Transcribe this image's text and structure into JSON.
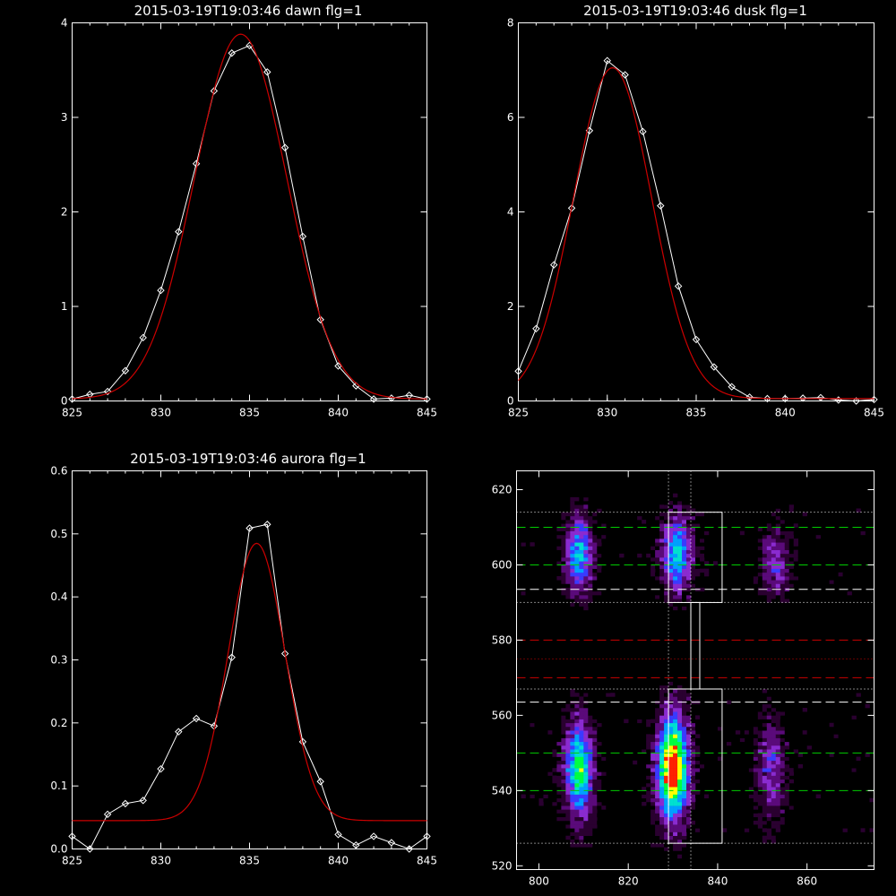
{
  "chart_data": [
    {
      "type": "line",
      "title": "2015-03-19T19:03:46 dawn flg=1",
      "xlim": [
        825,
        845
      ],
      "ylim": [
        0,
        4
      ],
      "xticks": [
        "825",
        "830",
        "835",
        "840",
        "845"
      ],
      "yticks": [
        "0",
        "1",
        "2",
        "3",
        "4"
      ],
      "series": [
        {
          "color": "#ffffff",
          "marker": "diamond",
          "x": [
            825,
            826,
            827,
            828,
            829,
            830,
            831,
            832,
            833,
            834,
            835,
            836,
            837,
            838,
            839,
            840,
            841,
            842,
            843,
            844,
            845
          ],
          "y": [
            0.02,
            0.07,
            0.1,
            0.32,
            0.67,
            1.17,
            1.79,
            2.51,
            3.28,
            3.68,
            3.76,
            3.48,
            2.68,
            1.74,
            0.86,
            0.37,
            0.16,
            0.02,
            0.03,
            0.06,
            0.02
          ]
        },
        {
          "color": "#cc0000",
          "fit": "gaussian",
          "center": 834.5,
          "sigma": 2.6,
          "amplitude": 3.86,
          "baseline": 0.02
        }
      ]
    },
    {
      "type": "line",
      "title": "2015-03-19T19:03:46 dusk flg=1",
      "xlim": [
        825,
        845
      ],
      "ylim": [
        0,
        8
      ],
      "xticks": [
        "825",
        "830",
        "835",
        "840",
        "845"
      ],
      "yticks": [
        "0",
        "2",
        "4",
        "6",
        "8"
      ],
      "series": [
        {
          "color": "#ffffff",
          "marker": "diamond",
          "x": [
            825,
            826,
            827,
            828,
            829,
            830,
            831,
            832,
            833,
            834,
            835,
            836,
            837,
            838,
            839,
            840,
            841,
            842,
            843,
            844,
            845
          ],
          "y": [
            0.63,
            1.53,
            2.88,
            4.08,
            5.72,
            7.2,
            6.9,
            5.7,
            4.13,
            2.43,
            1.3,
            0.72,
            0.3,
            0.08,
            0.05,
            0.05,
            0.06,
            0.07,
            0.02,
            -0.05,
            0.03
          ]
        },
        {
          "color": "#cc0000",
          "fit": "gaussian",
          "center": 830.3,
          "sigma": 2.2,
          "amplitude": 7.0,
          "baseline": 0.05
        }
      ]
    },
    {
      "type": "line",
      "title": "2015-03-19T19:03:46 aurora flg=1",
      "xlim": [
        825,
        845
      ],
      "ylim": [
        0,
        0.6
      ],
      "xticks": [
        "825",
        "830",
        "835",
        "840",
        "845"
      ],
      "yticks": [
        "0.0",
        "0.1",
        "0.2",
        "0.3",
        "0.4",
        "0.5",
        "0.6"
      ],
      "series": [
        {
          "color": "#ffffff",
          "marker": "diamond",
          "x": [
            825,
            826,
            827,
            828,
            829,
            830,
            831,
            832,
            833,
            834,
            835,
            836,
            837,
            838,
            839,
            840,
            841,
            842,
            843,
            844,
            845
          ],
          "y": [
            0.02,
            -0.005,
            0.055,
            0.072,
            0.077,
            0.127,
            0.186,
            0.207,
            0.195,
            0.304,
            0.509,
            0.515,
            0.31,
            0.17,
            0.107,
            0.023,
            0.006,
            0.02,
            0.01,
            -0.005,
            0.02
          ]
        },
        {
          "color": "#cc0000",
          "fit": "gaussian",
          "center": 835.4,
          "sigma": 1.6,
          "amplitude": 0.44,
          "baseline": 0.045
        }
      ]
    },
    {
      "type": "heatmap",
      "title": "",
      "xlim": [
        795,
        875
      ],
      "ylim": [
        519,
        625
      ],
      "xticks": [
        "800",
        "820",
        "840",
        "860"
      ],
      "yticks": [
        "520",
        "540",
        "560",
        "580",
        "600",
        "620"
      ],
      "colormap": [
        "#000000",
        "#2a0030",
        "#5a0a7a",
        "#8a2bd0",
        "#3a3aff",
        "#00a0ff",
        "#00e0d0",
        "#00ff40",
        "#ffff00",
        "#ff2000"
      ],
      "blobs": [
        {
          "x": 809,
          "y": 603,
          "sx": 2.2,
          "sy": 7,
          "amp": 0.55
        },
        {
          "x": 831,
          "y": 603,
          "sx": 2.4,
          "sy": 7,
          "amp": 0.6
        },
        {
          "x": 853,
          "y": 601,
          "sx": 2.2,
          "sy": 6,
          "amp": 0.35
        },
        {
          "x": 809,
          "y": 546,
          "sx": 2.3,
          "sy": 9,
          "amp": 0.7
        },
        {
          "x": 830,
          "y": 546,
          "sx": 2.5,
          "sy": 10,
          "amp": 1.0
        },
        {
          "x": 852,
          "y": 546,
          "sx": 2.2,
          "sy": 9,
          "amp": 0.35
        }
      ],
      "boxes": [
        {
          "x0": 829,
          "x1": 841,
          "y0": 590,
          "y1": 614
        },
        {
          "x0": 829,
          "x1": 841,
          "y0": 526,
          "y1": 567
        },
        {
          "x0": 834,
          "x1": 836,
          "y0": 567,
          "y1": 590
        }
      ],
      "hlines": [
        {
          "y": 610,
          "color": "#00cc00",
          "dash": "long"
        },
        {
          "y": 600,
          "color": "#00cc00",
          "dash": "long"
        },
        {
          "y": 550,
          "color": "#00cc00",
          "dash": "long"
        },
        {
          "y": 540,
          "color": "#00cc00",
          "dash": "long"
        },
        {
          "y": 593.5,
          "color": "#ffffff",
          "dash": "long"
        },
        {
          "y": 563.5,
          "color": "#ffffff",
          "dash": "long"
        },
        {
          "y": 580,
          "color": "#cc0000",
          "dash": "long"
        },
        {
          "y": 570,
          "color": "#cc0000",
          "dash": "long"
        },
        {
          "y": 614,
          "color": "#ffffff",
          "dash": "dot"
        },
        {
          "y": 590,
          "color": "#ffffff",
          "dash": "dot"
        },
        {
          "y": 575,
          "color": "#cc0000",
          "dash": "dot"
        },
        {
          "y": 567,
          "color": "#ffffff",
          "dash": "dot"
        },
        {
          "y": 526,
          "color": "#ffffff",
          "dash": "dot"
        }
      ],
      "vlines": [
        {
          "x": 829,
          "color": "#ffffff",
          "dash": "dot"
        },
        {
          "x": 834,
          "color": "#ffffff",
          "dash": "dot"
        }
      ]
    }
  ]
}
